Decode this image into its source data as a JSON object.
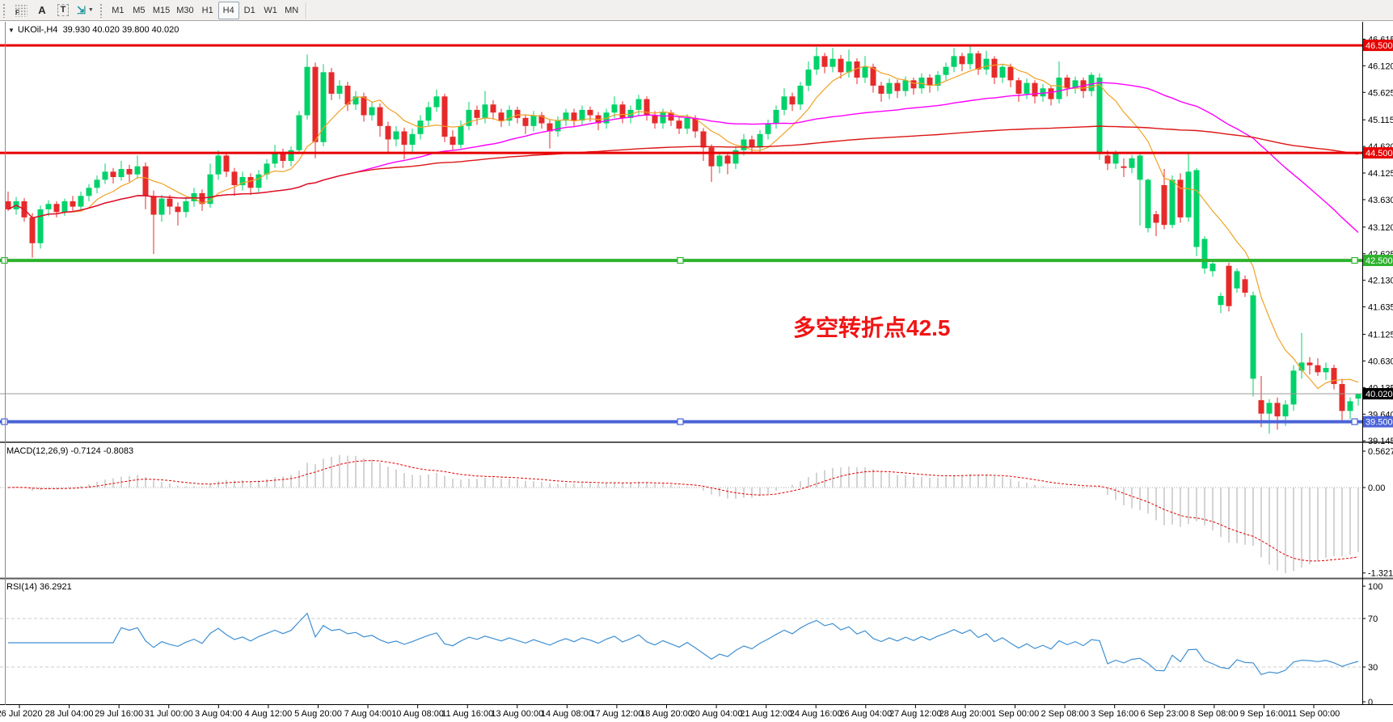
{
  "toolbar": {
    "icons": [
      {
        "name": "grid-f-icon",
        "glyph": "F"
      },
      {
        "name": "font-a-icon",
        "glyph": "A"
      },
      {
        "name": "text-label-icon",
        "glyph": "T"
      },
      {
        "name": "arrows-tool-icon",
        "glyph": "⇲"
      }
    ],
    "caret": "▼",
    "timeframes": [
      {
        "label": "M1",
        "active": false
      },
      {
        "label": "M5",
        "active": false
      },
      {
        "label": "M15",
        "active": false
      },
      {
        "label": "M30",
        "active": false
      },
      {
        "label": "H1",
        "active": false
      },
      {
        "label": "H4",
        "active": true
      },
      {
        "label": "D1",
        "active": false
      },
      {
        "label": "W1",
        "active": false
      },
      {
        "label": "MN",
        "active": false
      }
    ]
  },
  "chart": {
    "title": {
      "caret": "▼",
      "symbol": "UKOil-,H4",
      "ohlc": "39.930 40.020 39.800 40.020"
    },
    "annotation": {
      "text": "多空转折点42.5",
      "color": "#F01414"
    },
    "y_ticks": [
      "46.615",
      "46.120",
      "45.625",
      "45.115",
      "44.620",
      "44.125",
      "43.630",
      "43.120",
      "42.625",
      "42.130",
      "41.635",
      "41.125",
      "40.630",
      "40.135",
      "39.640",
      "39.145"
    ],
    "price_lines": [
      {
        "value": 46.5,
        "label": "46.500",
        "color": "#E80000",
        "thickness": 3,
        "selected": false
      },
      {
        "value": 44.5,
        "label": "44.500",
        "color": "#E80000",
        "thickness": 3,
        "selected": false
      },
      {
        "value": 42.5,
        "label": "42.500",
        "color": "#2DB32D",
        "thickness": 4,
        "selected": true
      },
      {
        "value": 39.5,
        "label": "39.500",
        "color": "#4A63D8",
        "thickness": 4,
        "selected": true
      }
    ],
    "current_price": {
      "value": 40.02,
      "label": "40.020",
      "line_color": "#9B9B9B",
      "tag_bg": "#000000"
    }
  },
  "macd_panel": {
    "label": "MACD(12,26,9) -0.7124 -0.8083",
    "ticks": [
      "0.5627",
      "0.00",
      "-1.3216"
    ],
    "current_macd": -0.7124,
    "current_signal": -0.8083
  },
  "rsi_panel": {
    "label": "RSI(14) 36.2921",
    "ticks": [
      "100",
      "70",
      "30",
      "0"
    ],
    "levels": [
      70,
      30
    ],
    "current": 36.2921
  },
  "time_axis": {
    "labels": [
      "26 Jul 2020",
      "28 Jul 04:00",
      "29 Jul 16:00",
      "31 Jul 00:00",
      "3 Aug 04:00",
      "4 Aug 12:00",
      "5 Aug 20:00",
      "7 Aug 04:00",
      "10 Aug 08:00",
      "11 Aug 16:00",
      "13 Aug 00:00",
      "14 Aug 08:00",
      "17 Aug 12:00",
      "18 Aug 20:00",
      "20 Aug 04:00",
      "21 Aug 12:00",
      "24 Aug 16:00",
      "26 Aug 04:00",
      "27 Aug 12:00",
      "28 Aug 20:00",
      "1 Sep 00:00",
      "2 Sep 08:00",
      "3 Sep 16:00",
      "6 Sep 23:00",
      "8 Sep 08:00",
      "9 Sep 16:00",
      "11 Sep 00:00"
    ]
  },
  "colors": {
    "bull": "#00D26A",
    "bear": "#E62A2A",
    "ma_fast": "#EFA226",
    "ma_mid": "#FF00FF",
    "ma_slow": "#DC1414",
    "macd_hist": "#BDBDBD",
    "macd_signal": "#E00000",
    "rsi_line": "#3F8FD2",
    "rsi_level": "#CCCCCC",
    "axis_text": "#000000"
  },
  "chart_data": {
    "type": "candlestick",
    "symbol": "UKOil-",
    "timeframe": "H4",
    "note": "OHLC per H4 bar, 26 Jul 2020 - 11 Sep 2020, values in USD",
    "ma_periods": [
      {
        "period": 8,
        "color": "#EFA226"
      },
      {
        "period": 44,
        "color": "#FF00FF"
      },
      {
        "period": 160,
        "color": "#DC1414"
      }
    ],
    "macd_params": [
      12,
      26,
      9
    ],
    "rsi_period": 14,
    "ohlc": [
      [
        43.6,
        43.78,
        43.42,
        43.45
      ],
      [
        43.45,
        43.68,
        43.35,
        43.6
      ],
      [
        43.6,
        43.66,
        43.22,
        43.3
      ],
      [
        43.3,
        43.38,
        42.55,
        42.82
      ],
      [
        42.82,
        43.52,
        42.72,
        43.45
      ],
      [
        43.45,
        43.62,
        43.32,
        43.55
      ],
      [
        43.55,
        43.6,
        43.3,
        43.4
      ],
      [
        43.4,
        43.65,
        43.33,
        43.6
      ],
      [
        43.6,
        43.7,
        43.42,
        43.5
      ],
      [
        43.5,
        43.78,
        43.44,
        43.7
      ],
      [
        43.7,
        43.92,
        43.6,
        43.85
      ],
      [
        43.85,
        44.08,
        43.75,
        44.0
      ],
      [
        44.0,
        44.3,
        43.92,
        44.15
      ],
      [
        44.15,
        44.22,
        43.93,
        44.05
      ],
      [
        44.05,
        44.35,
        43.98,
        44.2
      ],
      [
        44.2,
        44.28,
        43.96,
        44.1
      ],
      [
        44.1,
        44.45,
        44.02,
        44.25
      ],
      [
        44.25,
        44.32,
        43.45,
        43.7
      ],
      [
        43.7,
        43.8,
        42.62,
        43.35
      ],
      [
        43.35,
        43.72,
        43.22,
        43.65
      ],
      [
        43.65,
        43.72,
        43.35,
        43.5
      ],
      [
        43.5,
        43.58,
        43.15,
        43.4
      ],
      [
        43.4,
        43.68,
        43.3,
        43.6
      ],
      [
        43.6,
        43.85,
        43.5,
        43.75
      ],
      [
        43.75,
        43.82,
        43.42,
        43.55
      ],
      [
        43.55,
        44.3,
        43.48,
        44.1
      ],
      [
        44.1,
        44.55,
        44.0,
        44.45
      ],
      [
        44.45,
        44.5,
        44.05,
        44.15
      ],
      [
        44.15,
        44.22,
        43.7,
        43.9
      ],
      [
        43.9,
        44.15,
        43.8,
        44.05
      ],
      [
        44.05,
        44.12,
        43.72,
        43.85
      ],
      [
        43.85,
        44.18,
        43.75,
        44.1
      ],
      [
        44.1,
        44.38,
        44.0,
        44.3
      ],
      [
        44.3,
        44.65,
        44.22,
        44.5
      ],
      [
        44.5,
        44.58,
        44.22,
        44.35
      ],
      [
        44.35,
        44.62,
        44.25,
        44.55
      ],
      [
        44.55,
        45.28,
        44.48,
        45.2
      ],
      [
        45.2,
        46.33,
        45.12,
        46.1
      ],
      [
        46.1,
        46.18,
        44.4,
        44.7
      ],
      [
        44.7,
        46.15,
        44.62,
        46.0
      ],
      [
        46.0,
        46.08,
        45.48,
        45.6
      ],
      [
        45.6,
        45.85,
        45.5,
        45.75
      ],
      [
        45.75,
        45.82,
        45.28,
        45.4
      ],
      [
        45.4,
        45.65,
        45.3,
        45.55
      ],
      [
        45.55,
        45.62,
        45.08,
        45.2
      ],
      [
        45.2,
        45.45,
        45.1,
        45.35
      ],
      [
        45.35,
        45.42,
        44.8,
        45.0
      ],
      [
        45.0,
        45.08,
        44.5,
        44.75
      ],
      [
        44.75,
        45.0,
        44.62,
        44.9
      ],
      [
        44.9,
        44.97,
        44.38,
        44.65
      ],
      [
        44.65,
        44.95,
        44.52,
        44.85
      ],
      [
        44.85,
        45.2,
        44.75,
        45.1
      ],
      [
        45.1,
        45.45,
        45.0,
        45.35
      ],
      [
        45.35,
        45.68,
        45.26,
        45.55
      ],
      [
        45.55,
        45.6,
        44.7,
        44.8
      ],
      [
        44.8,
        44.92,
        44.55,
        44.65
      ],
      [
        44.65,
        45.1,
        44.58,
        45.0
      ],
      [
        45.0,
        45.45,
        44.92,
        45.3
      ],
      [
        45.3,
        45.38,
        45.02,
        45.15
      ],
      [
        45.15,
        45.65,
        45.05,
        45.4
      ],
      [
        45.4,
        45.48,
        45.12,
        45.25
      ],
      [
        45.25,
        45.32,
        44.98,
        45.1
      ],
      [
        45.1,
        45.38,
        45.0,
        45.3
      ],
      [
        45.3,
        45.36,
        45.05,
        45.15
      ],
      [
        45.15,
        45.22,
        44.85,
        45.0
      ],
      [
        45.0,
        45.28,
        44.9,
        45.2
      ],
      [
        45.2,
        45.26,
        44.95,
        45.05
      ],
      [
        45.05,
        45.12,
        44.58,
        44.9
      ],
      [
        44.9,
        45.18,
        44.8,
        45.1
      ],
      [
        45.1,
        45.32,
        45.0,
        45.25
      ],
      [
        45.25,
        45.32,
        45.0,
        45.1
      ],
      [
        45.1,
        45.38,
        45.02,
        45.3
      ],
      [
        45.3,
        45.36,
        45.08,
        45.2
      ],
      [
        45.2,
        45.26,
        44.92,
        45.05
      ],
      [
        45.05,
        45.32,
        44.95,
        45.25
      ],
      [
        45.25,
        45.55,
        45.15,
        45.4
      ],
      [
        45.4,
        45.46,
        45.05,
        45.15
      ],
      [
        45.15,
        45.38,
        45.05,
        45.3
      ],
      [
        45.3,
        45.58,
        45.2,
        45.5
      ],
      [
        45.5,
        45.55,
        45.1,
        45.2
      ],
      [
        45.2,
        45.28,
        44.95,
        45.05
      ],
      [
        45.05,
        45.32,
        44.95,
        45.25
      ],
      [
        45.25,
        45.3,
        45.0,
        45.1
      ],
      [
        45.1,
        45.16,
        44.85,
        44.95
      ],
      [
        44.95,
        45.22,
        44.85,
        45.15
      ],
      [
        45.15,
        45.2,
        44.78,
        44.9
      ],
      [
        44.9,
        44.96,
        44.35,
        44.6
      ],
      [
        44.6,
        44.66,
        43.96,
        44.25
      ],
      [
        44.25,
        44.52,
        44.12,
        44.45
      ],
      [
        44.45,
        44.5,
        44.1,
        44.3
      ],
      [
        44.3,
        44.62,
        44.2,
        44.55
      ],
      [
        44.55,
        44.85,
        44.45,
        44.75
      ],
      [
        44.75,
        44.82,
        44.48,
        44.6
      ],
      [
        44.6,
        44.92,
        44.5,
        44.85
      ],
      [
        44.85,
        45.12,
        44.75,
        45.05
      ],
      [
        45.05,
        45.38,
        44.95,
        45.3
      ],
      [
        45.3,
        45.7,
        45.2,
        45.55
      ],
      [
        45.55,
        45.62,
        45.28,
        45.4
      ],
      [
        45.4,
        45.82,
        45.3,
        45.75
      ],
      [
        45.75,
        46.2,
        45.65,
        46.05
      ],
      [
        46.05,
        46.47,
        45.95,
        46.3
      ],
      [
        46.3,
        46.36,
        45.98,
        46.1
      ],
      [
        46.1,
        46.45,
        46.0,
        46.25
      ],
      [
        46.25,
        46.32,
        45.88,
        46.0
      ],
      [
        46.0,
        46.42,
        45.9,
        46.2
      ],
      [
        46.2,
        46.26,
        45.78,
        45.9
      ],
      [
        45.9,
        46.3,
        45.8,
        46.1
      ],
      [
        46.1,
        46.16,
        45.62,
        45.75
      ],
      [
        45.75,
        45.82,
        45.45,
        45.6
      ],
      [
        45.6,
        45.88,
        45.5,
        45.8
      ],
      [
        45.8,
        45.86,
        45.52,
        45.65
      ],
      [
        45.65,
        45.92,
        45.55,
        45.85
      ],
      [
        45.85,
        45.9,
        45.58,
        45.7
      ],
      [
        45.7,
        45.98,
        45.6,
        45.9
      ],
      [
        45.9,
        45.96,
        45.62,
        45.75
      ],
      [
        45.75,
        46.02,
        45.65,
        45.95
      ],
      [
        45.95,
        46.18,
        45.85,
        46.1
      ],
      [
        46.1,
        46.45,
        46.0,
        46.3
      ],
      [
        46.3,
        46.36,
        46.02,
        46.15
      ],
      [
        46.15,
        46.5,
        46.05,
        46.35
      ],
      [
        46.35,
        46.4,
        45.95,
        46.05
      ],
      [
        46.05,
        46.4,
        45.95,
        46.25
      ],
      [
        46.25,
        46.3,
        45.78,
        45.9
      ],
      [
        45.9,
        46.15,
        45.8,
        46.1
      ],
      [
        46.1,
        46.16,
        45.72,
        45.85
      ],
      [
        45.85,
        45.9,
        45.45,
        45.6
      ],
      [
        45.6,
        45.88,
        45.5,
        45.8
      ],
      [
        45.8,
        45.85,
        45.42,
        45.55
      ],
      [
        45.55,
        45.78,
        45.45,
        45.7
      ],
      [
        45.7,
        45.75,
        45.38,
        45.5
      ],
      [
        45.5,
        46.2,
        45.42,
        45.9
      ],
      [
        45.9,
        45.95,
        45.55,
        45.7
      ],
      [
        45.7,
        45.92,
        45.6,
        45.85
      ],
      [
        45.85,
        45.9,
        45.52,
        45.65
      ],
      [
        45.65,
        46.0,
        45.55,
        45.95
      ],
      [
        44.5,
        45.98,
        44.37,
        45.9
      ],
      [
        44.45,
        44.55,
        44.18,
        44.3
      ],
      [
        44.3,
        44.55,
        44.2,
        44.48
      ],
      [
        44.25,
        44.4,
        44.05,
        44.22
      ],
      [
        44.22,
        44.46,
        44.12,
        44.4
      ],
      [
        44.0,
        44.5,
        43.15,
        44.45
      ],
      [
        43.1,
        44.02,
        43.02,
        44.0
      ],
      [
        43.36,
        43.42,
        42.95,
        43.2
      ],
      [
        43.9,
        44.2,
        43.08,
        43.16
      ],
      [
        43.16,
        44.08,
        43.1,
        44.0
      ],
      [
        44.0,
        44.12,
        43.2,
        43.3
      ],
      [
        43.3,
        44.48,
        43.22,
        44.15
      ],
      [
        42.75,
        44.22,
        42.58,
        44.18
      ],
      [
        42.35,
        42.95,
        42.25,
        42.9
      ],
      [
        42.3,
        42.48,
        42.2,
        42.44
      ],
      [
        41.67,
        41.9,
        41.52,
        41.84
      ],
      [
        42.4,
        42.46,
        41.55,
        41.65
      ],
      [
        41.98,
        42.35,
        41.9,
        42.3
      ],
      [
        42.15,
        42.22,
        41.82,
        41.9
      ],
      [
        40.3,
        41.92,
        39.97,
        41.85
      ],
      [
        39.9,
        40.35,
        39.4,
        39.65
      ],
      [
        39.65,
        39.92,
        39.28,
        39.85
      ],
      [
        39.85,
        39.95,
        39.35,
        39.6
      ],
      [
        39.6,
        39.9,
        39.42,
        39.82
      ],
      [
        39.82,
        40.55,
        39.7,
        40.45
      ],
      [
        40.45,
        41.15,
        40.3,
        40.6
      ],
      [
        40.6,
        40.7,
        40.38,
        40.55
      ],
      [
        40.55,
        40.68,
        40.35,
        40.42
      ],
      [
        40.42,
        40.6,
        40.28,
        40.5
      ],
      [
        40.5,
        40.56,
        40.1,
        40.2
      ],
      [
        40.2,
        40.3,
        39.5,
        39.7
      ],
      [
        39.7,
        39.95,
        39.55,
        39.88
      ],
      [
        39.93,
        40.02,
        39.8,
        40.02
      ]
    ]
  }
}
